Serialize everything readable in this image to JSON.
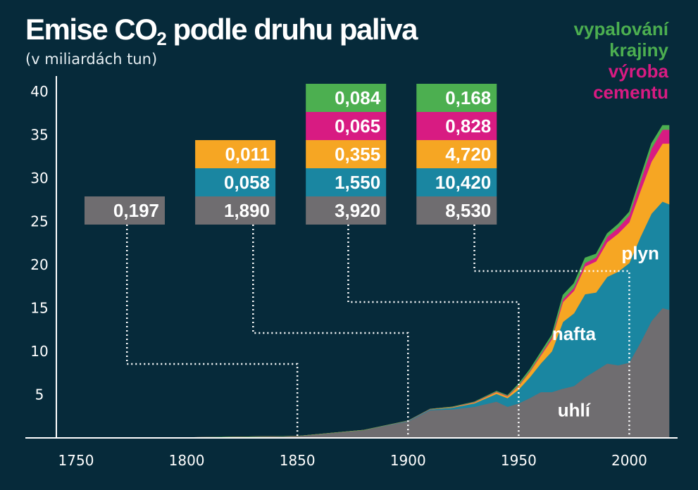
{
  "title_main": "Emise CO",
  "title_sub": "2",
  "title_rest": " podle druhu paliva",
  "subtitle": "(v miliardách tun)",
  "legend": [
    {
      "line1": "vypalování",
      "line2": "krajiny",
      "color": "#4caf50"
    },
    {
      "line1": "výroba",
      "line2": "cementu",
      "color": "#d81b82"
    }
  ],
  "colors": {
    "background": "#062a3a",
    "coal": "#6f6d70",
    "oil": "#1a86a1",
    "gas": "#f6a623",
    "cement": "#d81b82",
    "flaring": "#4caf50",
    "axis": "#ffffff"
  },
  "chart_data": {
    "type": "area",
    "title": "Emise CO2 podle druhu paliva",
    "subtitle": "(v miliardách tun)",
    "xlim": [
      1750,
      2018
    ],
    "ylim": [
      0,
      40
    ],
    "xticks": [
      "1750",
      "1800",
      "1850",
      "1900",
      "1950",
      "2000"
    ],
    "yticks": [
      "5",
      "10",
      "15",
      "20",
      "25",
      "30",
      "35",
      "40"
    ],
    "x": [
      1750,
      1800,
      1850,
      1880,
      1900,
      1910,
      1920,
      1930,
      1940,
      1945,
      1950,
      1955,
      1960,
      1965,
      1970,
      1975,
      1980,
      1985,
      1990,
      1995,
      2000,
      2005,
      2010,
      2015,
      2018
    ],
    "series": [
      {
        "name": "uhlí",
        "values": [
          0.01,
          0.05,
          0.2,
          0.9,
          1.9,
          3.2,
          3.3,
          3.6,
          4.2,
          3.6,
          4.0,
          4.6,
          5.3,
          5.3,
          5.7,
          6.0,
          7.0,
          7.8,
          8.6,
          8.4,
          8.7,
          11.0,
          13.5,
          15.0,
          14.8
        ]
      },
      {
        "name": "nafta",
        "values": [
          0,
          0,
          0,
          0,
          0.06,
          0.1,
          0.2,
          0.4,
          0.9,
          1.0,
          1.6,
          2.4,
          3.3,
          4.7,
          7.7,
          8.4,
          9.6,
          9.0,
          10.0,
          10.8,
          11.5,
          12.2,
          12.4,
          12.3,
          12.2
        ]
      },
      {
        "name": "plyn",
        "values": [
          0,
          0,
          0,
          0,
          0.01,
          0.02,
          0.05,
          0.1,
          0.2,
          0.2,
          0.4,
          0.6,
          0.9,
          1.4,
          2.3,
          2.6,
          3.2,
          3.6,
          4.0,
          4.4,
          4.7,
          5.3,
          6.0,
          6.7,
          7.0
        ]
      },
      {
        "name": "výroba cementu",
        "values": [
          0,
          0,
          0,
          0,
          0.01,
          0.02,
          0.03,
          0.05,
          0.06,
          0.06,
          0.08,
          0.1,
          0.15,
          0.2,
          0.3,
          0.35,
          0.4,
          0.45,
          0.6,
          0.7,
          0.8,
          1.1,
          1.5,
          1.6,
          1.6
        ]
      },
      {
        "name": "vypalování krajiny",
        "values": [
          0,
          0,
          0,
          0,
          0,
          0,
          0.01,
          0.02,
          0.05,
          0.06,
          0.17,
          0.2,
          0.25,
          0.3,
          0.5,
          0.5,
          0.6,
          0.4,
          0.4,
          0.4,
          0.4,
          0.5,
          0.6,
          0.5,
          0.5
        ]
      }
    ],
    "series_labels": [
      {
        "text": "uhlí",
        "x": 1975,
        "y": 2.5
      },
      {
        "text": "nafta",
        "x": 1975,
        "y": 11.3
      },
      {
        "text": "plyn",
        "x": 2005,
        "y": 20.6
      }
    ],
    "callouts": [
      {
        "year": 1750,
        "values": [
          "0,197"
        ],
        "colors": [
          "#6f6d70"
        ]
      },
      {
        "year": 1800,
        "values": [
          "1,890",
          "0,058",
          "0,011"
        ],
        "colors": [
          "#6f6d70",
          "#1a86a1",
          "#f6a623"
        ]
      },
      {
        "year": 1850,
        "values": [
          "3,920",
          "1,550",
          "0,355",
          "0,065",
          "0,084"
        ],
        "colors": [
          "#6f6d70",
          "#1a86a1",
          "#f6a623",
          "#d81b82",
          "#4caf50"
        ]
      },
      {
        "year": 1900,
        "values": [
          "8,530",
          "10,420",
          "4,720",
          "0,828",
          "0,168"
        ],
        "colors": [
          "#6f6d70",
          "#1a86a1",
          "#f6a623",
          "#d81b82",
          "#4caf50"
        ]
      }
    ],
    "leaders": [
      {
        "from_year": 1773,
        "to_year": 1850
      },
      {
        "from_year": 1830,
        "to_year": 1900
      },
      {
        "from_year": 1873,
        "to_year": 1950
      },
      {
        "from_year": 1930,
        "to_year": 2000
      }
    ],
    "grid": false,
    "legend_position": "top-right"
  }
}
